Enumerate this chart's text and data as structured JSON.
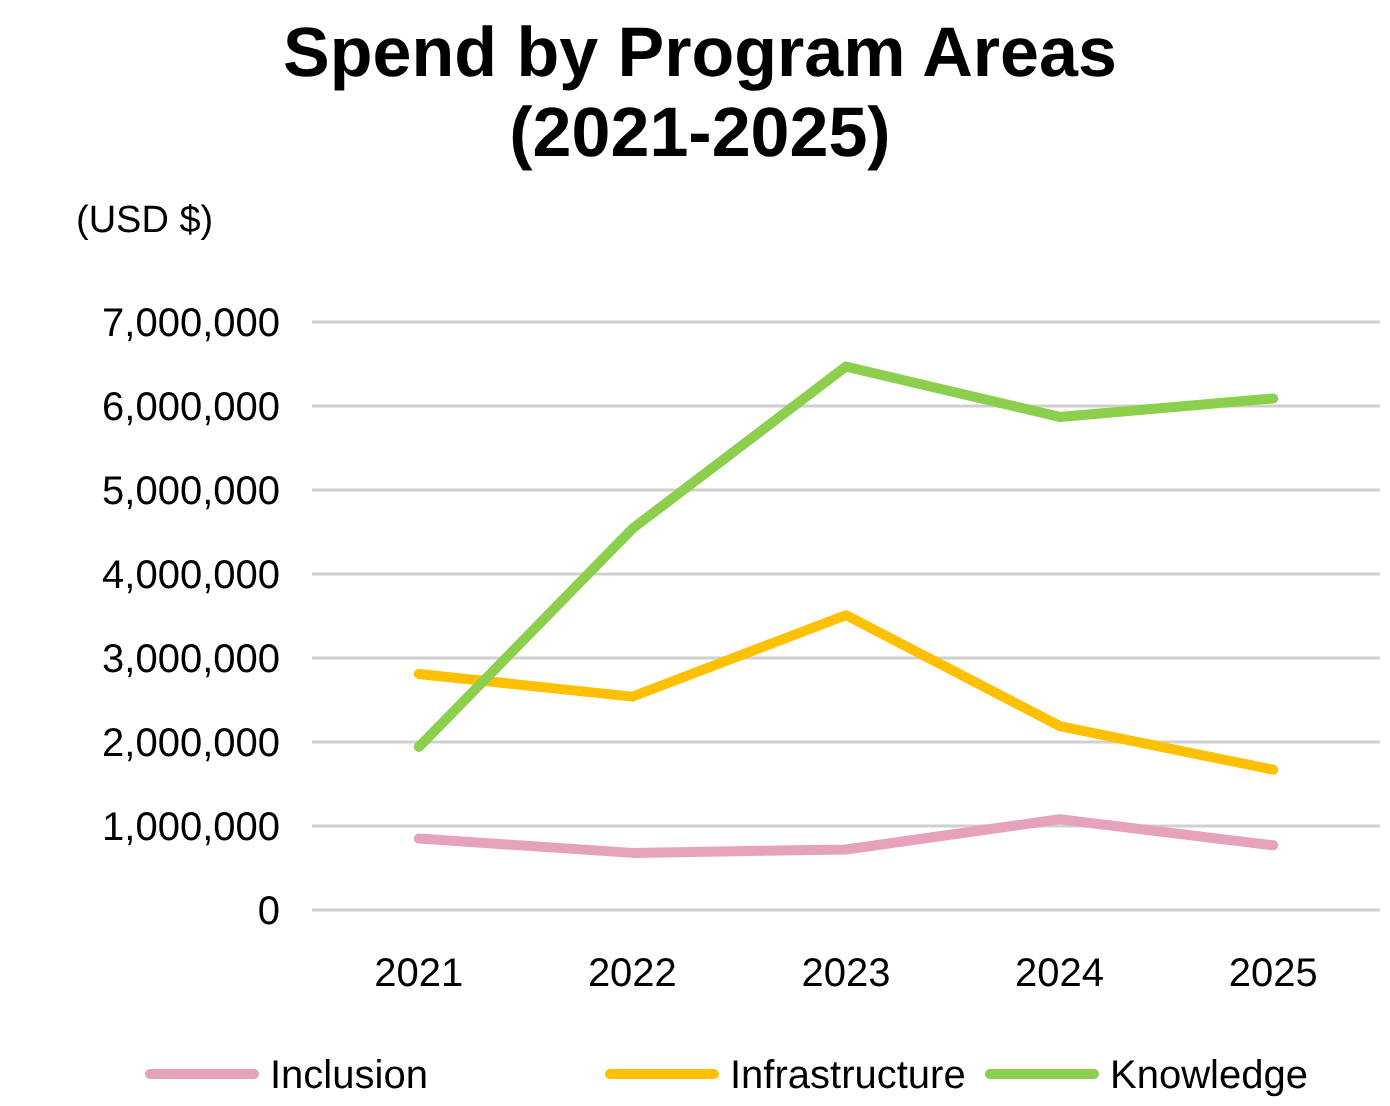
{
  "chart_data": {
    "type": "line",
    "title": "Spend by Program Areas\n(2021-2025)",
    "ylabel": "(USD $)",
    "categories": [
      "2021",
      "2022",
      "2023",
      "2024",
      "2025"
    ],
    "series": [
      {
        "name": "Inclusion",
        "color": "#e6a1bc",
        "values": [
          850000,
          680000,
          720000,
          1080000,
          770000
        ]
      },
      {
        "name": "Infrastructure",
        "color": "#ffc000",
        "values": [
          2810000,
          2540000,
          3510000,
          2190000,
          1670000
        ]
      },
      {
        "name": "Knowledge",
        "color": "#8ccf4d",
        "values": [
          1940000,
          4540000,
          6470000,
          5870000,
          6090000
        ]
      }
    ],
    "ylim": [
      0,
      7000000
    ],
    "yticks": [
      {
        "value": 0,
        "label": "0"
      },
      {
        "value": 1000000,
        "label": "1,000,000"
      },
      {
        "value": 2000000,
        "label": "2,000,000"
      },
      {
        "value": 3000000,
        "label": "3,000,000"
      },
      {
        "value": 4000000,
        "label": "4,000,000"
      },
      {
        "value": 5000000,
        "label": "5,000,000"
      },
      {
        "value": 6000000,
        "label": "6,000,000"
      },
      {
        "value": 7000000,
        "label": "7,000,000"
      }
    ],
    "grid": "y",
    "legend": "bottom",
    "marker": "none",
    "line_style": "solid"
  }
}
